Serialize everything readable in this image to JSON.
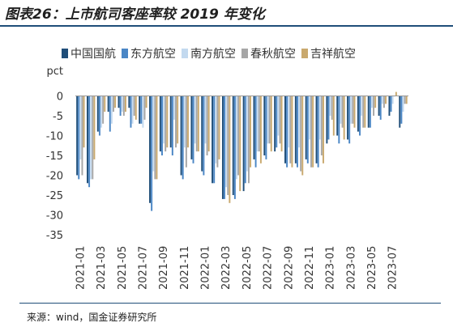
{
  "title": "图表26：上市航司客座率较 2019 年变化",
  "source": "来源：wind，国金证券研究所",
  "chart_data": {
    "type": "bar",
    "ylabel": "pct",
    "ylim": [
      -35,
      2
    ],
    "yticks": [
      0,
      -5,
      -10,
      -15,
      -20,
      -25,
      -30,
      -35
    ],
    "xtick_labels": [
      "2021-01",
      "2021-03",
      "2021-05",
      "2021-07",
      "2021-09",
      "2021-11",
      "2022-01",
      "2022-03",
      "2022-05",
      "2022-07",
      "2022-09",
      "2022-11",
      "2023-01",
      "2023-03",
      "2023-05",
      "2023-07"
    ],
    "legend_position": "top",
    "categories": [
      "2021-01",
      "2021-02",
      "2021-03",
      "2021-04",
      "2021-05",
      "2021-06",
      "2021-07",
      "2021-08",
      "2021-09",
      "2021-10",
      "2021-11",
      "2021-12",
      "2022-01",
      "2022-02",
      "2022-03",
      "2022-04",
      "2022-05",
      "2022-06",
      "2022-07",
      "2022-08",
      "2022-09",
      "2022-10",
      "2022-11",
      "2022-12",
      "2023-01",
      "2023-02",
      "2023-03",
      "2023-04",
      "2023-05",
      "2023-06",
      "2023-07",
      "2023-08"
    ],
    "series": [
      {
        "name": "中国国航",
        "color": "#1f4e79",
        "values": [
          -20,
          -22,
          -9,
          -4,
          -3,
          -3,
          -7,
          -27,
          -14,
          -13,
          -20,
          -16,
          -19,
          -22,
          -26,
          -25,
          -24,
          -16,
          -15,
          -14,
          -17,
          -17,
          -16,
          -17,
          -12,
          -10,
          -11,
          -9,
          -8,
          -5,
          -5,
          -8
        ]
      },
      {
        "name": "东方航空",
        "color": "#4a86c5",
        "values": [
          -21,
          -23,
          -10,
          -9,
          -5,
          -8,
          -7,
          -29,
          -15,
          -15,
          -21,
          -17,
          -20,
          -22,
          -26,
          -26,
          -22,
          -18,
          -16,
          -13,
          -18,
          -18,
          -17,
          -18,
          -11,
          -12,
          -12,
          -10,
          -8,
          -6,
          -4,
          -7
        ]
      },
      {
        "name": "南方航空",
        "color": "#c3d9ef",
        "values": [
          -16,
          -21,
          -8,
          -7,
          -4,
          -7,
          -8,
          -19,
          -12,
          -6,
          -13,
          -12,
          -12,
          -17,
          -23,
          -21,
          -19,
          -14,
          -12,
          -10,
          -13,
          -13,
          -11,
          -11,
          -5,
          -7,
          -7,
          -5,
          -3,
          -2,
          -2,
          -4
        ]
      },
      {
        "name": "春秋航空",
        "color": "#a6a6a6",
        "values": [
          -20,
          -21,
          -7,
          -4,
          -5,
          -5,
          -6,
          -21,
          -14,
          -13,
          -18,
          -14,
          -15,
          -18,
          -25,
          -20,
          -22,
          -14,
          -12,
          -12,
          -17,
          -19,
          -18,
          -15,
          -6,
          -8,
          -7,
          -8,
          -5,
          -3,
          0,
          -2
        ]
      },
      {
        "name": "吉祥航空",
        "color": "#c9a96e",
        "values": [
          -13,
          -16,
          -4,
          -3,
          -4,
          -6,
          -3,
          -21,
          -13,
          -12,
          -13,
          -14,
          -14,
          -16,
          -27,
          -24,
          -18,
          -17,
          -14,
          -14,
          -18,
          -20,
          -18,
          -17,
          -10,
          -11,
          -8,
          -8,
          -3,
          -2,
          1,
          -2
        ]
      }
    ]
  }
}
